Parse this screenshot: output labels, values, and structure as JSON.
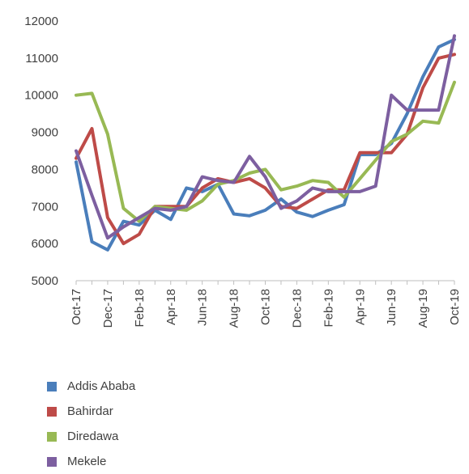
{
  "chart_data": {
    "type": "line",
    "title": "",
    "xlabel": "",
    "ylabel": "",
    "ylim": [
      5000,
      12000
    ],
    "y_ticks": [
      5000,
      6000,
      7000,
      8000,
      9000,
      10000,
      11000,
      12000
    ],
    "y_tick_labels": [
      "5000",
      "6000",
      "7000",
      "8000",
      "9000",
      "10000",
      "11000",
      "12000"
    ],
    "x_tick_labels": [
      "Oct-17",
      "Dec-17",
      "Feb-18",
      "Apr-18",
      "Jun-18",
      "Aug-18",
      "Oct-18",
      "Dec-18",
      "Feb-19",
      "Apr-19",
      "Jun-19",
      "Aug-19",
      "Oct-19"
    ],
    "x": [
      "Oct-17",
      "Nov-17",
      "Dec-17",
      "Jan-18",
      "Feb-18",
      "Mar-18",
      "Apr-18",
      "May-18",
      "Jun-18",
      "Jul-18",
      "Aug-18",
      "Sep-18",
      "Oct-18",
      "Nov-18",
      "Dec-18",
      "Jan-19",
      "Feb-19",
      "Mar-19",
      "Apr-19",
      "May-19",
      "Jun-19",
      "Jul-19",
      "Aug-19",
      "Sep-19",
      "Oct-19"
    ],
    "grid": false,
    "legend_position": "bottom",
    "series": [
      {
        "name": "Addis Ababa",
        "color": "#4a7ebb",
        "values": [
          8200,
          6050,
          5830,
          6600,
          6500,
          6900,
          6650,
          7500,
          7400,
          7600,
          6800,
          6750,
          6900,
          7200,
          6850,
          6730,
          6900,
          7050,
          8400,
          8400,
          8700,
          9500,
          10500,
          11300,
          11500
        ]
      },
      {
        "name": "Bahirdar",
        "color": "#be4b48",
        "values": [
          8300,
          9100,
          6700,
          6000,
          6250,
          7000,
          7000,
          7000,
          7500,
          7750,
          7650,
          7750,
          7500,
          7000,
          6950,
          7200,
          7450,
          7450,
          8450,
          8450,
          8450,
          8950,
          10200,
          11000,
          11100
        ]
      },
      {
        "name": "Diredawa",
        "color": "#98b954",
        "values": [
          10000,
          10050,
          8950,
          6950,
          6600,
          7000,
          6950,
          6900,
          7150,
          7600,
          7700,
          7900,
          8000,
          7450,
          7550,
          7700,
          7650,
          7250,
          7750,
          8250,
          8750,
          8950,
          9300,
          9250,
          10350
        ]
      },
      {
        "name": "Mekele",
        "color": "#7d5fa0",
        "values": [
          8500,
          7300,
          6150,
          6450,
          6700,
          6950,
          6900,
          7000,
          7800,
          7700,
          7650,
          8350,
          7800,
          6950,
          7150,
          7500,
          7400,
          7400,
          7400,
          7550,
          10000,
          9600,
          9600,
          9600,
          11600
        ]
      }
    ]
  }
}
